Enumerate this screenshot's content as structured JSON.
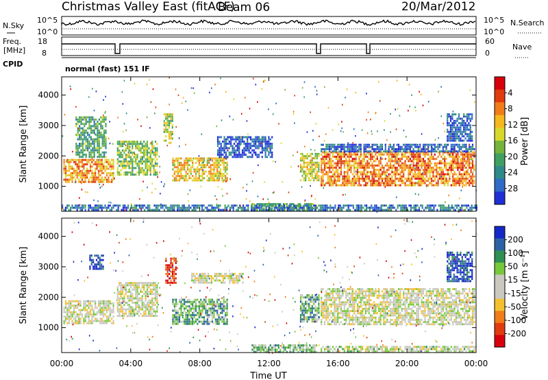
{
  "header": {
    "station": "Christmas Valley East (fitACF)",
    "beam": "Beam 06",
    "date": "20/Mar/2012"
  },
  "panels": {
    "nsky": {
      "left_label": "N.Sky",
      "left_ticks": [
        "10^5",
        "10^0"
      ],
      "right_ticks": [
        "10^5",
        "10^0"
      ],
      "right_label": "N.Search"
    },
    "freq": {
      "left_label_top": "Freq.",
      "left_label_bottom": "[MHz]",
      "left_ticks": [
        "18",
        "8"
      ],
      "right_ticks": [
        "60",
        "0"
      ],
      "right_label": "Nave"
    },
    "cpid": {
      "label": "CPID",
      "text": "normal (fast) 151 IF"
    }
  },
  "colors": {
    "power_scale": [
      "#1f2fd6",
      "#2f6bc7",
      "#2f8a8a",
      "#3fa060",
      "#74b43c",
      "#d7d92a",
      "#f5b81f",
      "#f07d1a",
      "#e03c10",
      "#d8000c"
    ],
    "velocity_scale": [
      "#1428c8",
      "#2d63a6",
      "#2f8f55",
      "#78c83c",
      "#c9c9c0",
      "#c9c9c0",
      "#f5c030",
      "#f07d1a",
      "#e03c10",
      "#d8000c"
    ]
  },
  "chart_data": [
    {
      "type": "heatmap",
      "title": "",
      "xlabel": "",
      "ylabel": "Slant Range [km]",
      "x_ticks": [
        "00:00",
        "04:00",
        "08:00",
        "12:00",
        "16:00",
        "20:00",
        "00:00"
      ],
      "xlim_hours": [
        0,
        24
      ],
      "y_ticks": [
        "1000",
        "2000",
        "3000",
        "4000"
      ],
      "ylim_km": [
        180,
        4600
      ],
      "colorbar": {
        "label": "Power [dB]",
        "ticks": [
          "4",
          "8",
          "12",
          "16",
          "20",
          "24",
          "28"
        ],
        "range": [
          0,
          30
        ]
      },
      "regions": [
        {
          "t0": 0.1,
          "t1": 3.0,
          "r0": 1150,
          "r1": 1900,
          "level": 0.7
        },
        {
          "t0": 0.8,
          "t1": 2.6,
          "r0": 2000,
          "r1": 3300,
          "level": 0.35
        },
        {
          "t0": 3.2,
          "t1": 5.5,
          "r0": 1350,
          "r1": 2500,
          "level": 0.45
        },
        {
          "t0": 5.9,
          "t1": 6.4,
          "r0": 2400,
          "r1": 3400,
          "level": 0.5
        },
        {
          "t0": 6.4,
          "t1": 9.6,
          "r0": 1200,
          "r1": 1950,
          "level": 0.6
        },
        {
          "t0": 9.0,
          "t1": 12.2,
          "r0": 2000,
          "r1": 2650,
          "level": 0.1
        },
        {
          "t0": 13.8,
          "t1": 14.9,
          "r0": 1200,
          "r1": 2100,
          "level": 0.55
        },
        {
          "t0": 15.0,
          "t1": 23.9,
          "r0": 1050,
          "r1": 2150,
          "level": 0.75
        },
        {
          "t0": 15.0,
          "t1": 23.9,
          "r0": 2150,
          "r1": 2400,
          "level": 0.15
        },
        {
          "t0": 22.3,
          "t1": 23.8,
          "r0": 2500,
          "r1": 3400,
          "level": 0.15
        },
        {
          "t0": 11.0,
          "t1": 14.8,
          "r0": 200,
          "r1": 450,
          "level": 0.4
        },
        {
          "t0": 0.0,
          "t1": 24.0,
          "r0": 200,
          "r1": 400,
          "level": 0.2
        }
      ]
    },
    {
      "type": "heatmap",
      "title": "",
      "xlabel": "Time UT",
      "ylabel": "Slant Range [km]",
      "x_ticks": [
        "00:00",
        "04:00",
        "08:00",
        "12:00",
        "16:00",
        "20:00",
        "00:00"
      ],
      "xlim_hours": [
        0,
        24
      ],
      "y_ticks": [
        "1000",
        "2000",
        "3000",
        "4000"
      ],
      "ylim_km": [
        180,
        4600
      ],
      "colorbar": {
        "label": "Velocity [m s⁻¹]",
        "ticks": [
          "200",
          "100",
          "50",
          "15",
          "-15",
          "-50",
          "-100",
          "-200"
        ],
        "range": [
          -250,
          250
        ]
      },
      "regions": [
        {
          "t0": 0.1,
          "t1": 3.0,
          "r0": 1150,
          "r1": 1900,
          "level": 0.5
        },
        {
          "t0": 1.6,
          "t1": 2.4,
          "r0": 2900,
          "r1": 3400,
          "level": 0.05
        },
        {
          "t0": 3.2,
          "t1": 5.5,
          "r0": 1350,
          "r1": 2500,
          "level": 0.5
        },
        {
          "t0": 6.0,
          "t1": 6.6,
          "r0": 2500,
          "r1": 3300,
          "level": 0.9
        },
        {
          "t0": 6.4,
          "t1": 9.6,
          "r0": 1100,
          "r1": 1950,
          "level": 0.3
        },
        {
          "t0": 7.5,
          "t1": 10.5,
          "r0": 2500,
          "r1": 2800,
          "level": 0.5
        },
        {
          "t0": 13.8,
          "t1": 14.9,
          "r0": 1200,
          "r1": 2100,
          "level": 0.3
        },
        {
          "t0": 15.0,
          "t1": 23.9,
          "r0": 1100,
          "r1": 2300,
          "level": 0.5
        },
        {
          "t0": 22.3,
          "t1": 23.8,
          "r0": 2500,
          "r1": 3500,
          "level": 0.1
        },
        {
          "t0": 11.0,
          "t1": 14.8,
          "r0": 200,
          "r1": 450,
          "level": 0.35
        },
        {
          "t0": 15.0,
          "t1": 24.0,
          "r0": 200,
          "r1": 400,
          "level": 0.45
        }
      ]
    }
  ]
}
